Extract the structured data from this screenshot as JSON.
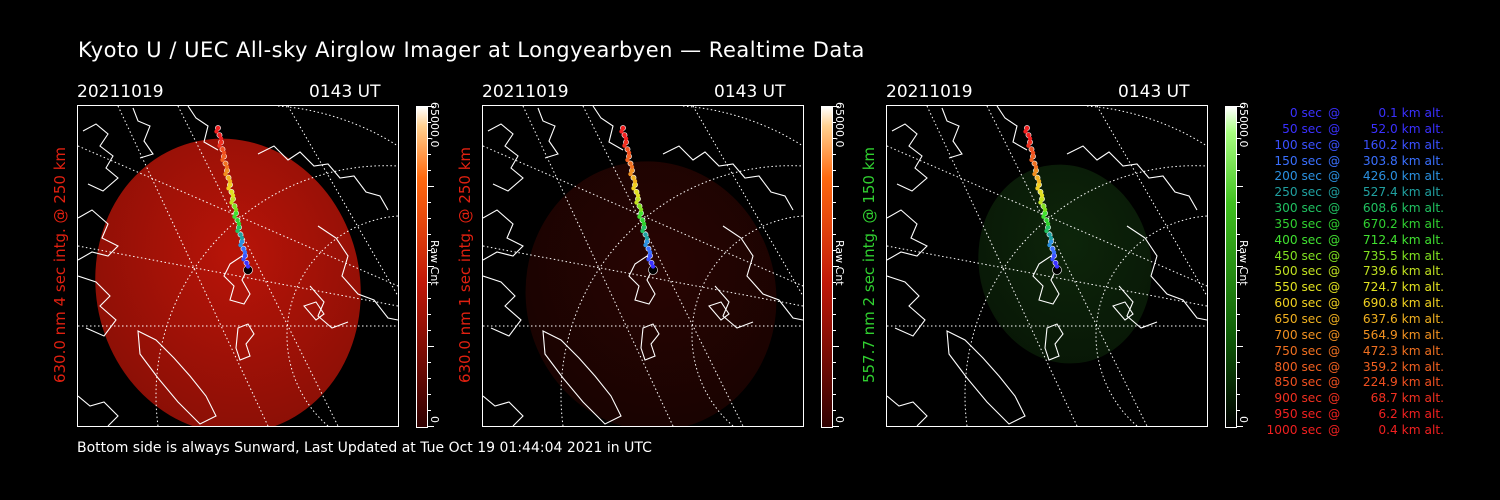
{
  "header": {
    "title": "Kyoto U / UEC All-sky Airglow Imager at Longyearbyen — Realtime Data"
  },
  "footer": {
    "text": "Bottom side is always Sunward, Last Updated at Tue Oct 19 01:44:04 2021 in UTC"
  },
  "panels": [
    {
      "date": "20211019",
      "time": "0143 UT",
      "side_label": "630.0 nm 4 sec intg. @ 250 km",
      "label_color": "#e02010",
      "cbar_max": "65000.0",
      "cbar_zero": "0",
      "cbar_unit": "Raw Cnt",
      "intensity_level": 0.85,
      "glow_color": "#b81408"
    },
    {
      "date": "20211019",
      "time": "0143 UT",
      "side_label": "630.0 nm 1 sec intg. @ 250 km",
      "label_color": "#e02010",
      "cbar_max": "65000.0",
      "cbar_zero": "0",
      "cbar_unit": "Raw Cnt",
      "intensity_level": 0.3,
      "glow_color": "#5a0a04"
    },
    {
      "date": "20211019",
      "time": "0143 UT",
      "side_label": "557.7 nm 2 sec intg. @ 150 km",
      "label_color": "#30d030",
      "cbar_max": "65000.0",
      "cbar_zero": "0",
      "cbar_unit": "Raw Cnt",
      "intensity_level": 0.35,
      "glow_color": "#1a4a14"
    }
  ],
  "legend": [
    {
      "time": "0 sec",
      "alt": "0.1 km alt.",
      "color": "#3a30ff"
    },
    {
      "time": "50 sec",
      "alt": "52.0 km alt.",
      "color": "#3a30ff"
    },
    {
      "time": "100 sec",
      "alt": "160.2 km alt.",
      "color": "#3a50ff"
    },
    {
      "time": "150 sec",
      "alt": "303.8 km alt.",
      "color": "#3a70ff"
    },
    {
      "time": "200 sec",
      "alt": "426.0 km alt.",
      "color": "#2a90e0"
    },
    {
      "time": "250 sec",
      "alt": "527.4 km alt.",
      "color": "#20a0a0"
    },
    {
      "time": "300 sec",
      "alt": "608.6 km alt.",
      "color": "#20c060"
    },
    {
      "time": "350 sec",
      "alt": "670.2 km alt.",
      "color": "#30d030"
    },
    {
      "time": "400 sec",
      "alt": "712.4 km alt.",
      "color": "#40e030"
    },
    {
      "time": "450 sec",
      "alt": "735.5 km alt.",
      "color": "#80e020"
    },
    {
      "time": "500 sec",
      "alt": "739.6 km alt.",
      "color": "#c0e020"
    },
    {
      "time": "550 sec",
      "alt": "724.7 km alt.",
      "color": "#e0e020"
    },
    {
      "time": "600 sec",
      "alt": "690.8 km alt.",
      "color": "#f0d020"
    },
    {
      "time": "650 sec",
      "alt": "637.6 km alt.",
      "color": "#f0b020"
    },
    {
      "time": "700 sec",
      "alt": "564.9 km alt.",
      "color": "#f09020"
    },
    {
      "time": "750 sec",
      "alt": "472.3 km alt.",
      "color": "#f07020"
    },
    {
      "time": "800 sec",
      "alt": "359.2 km alt.",
      "color": "#f06020"
    },
    {
      "time": "850 sec",
      "alt": "224.9 km alt.",
      "color": "#f05020"
    },
    {
      "time": "900 sec",
      "alt": "68.7 km alt.",
      "color": "#f03020"
    },
    {
      "time": "950 sec",
      "alt": "6.2 km alt.",
      "color": "#f02020"
    },
    {
      "time": "1000 sec",
      "alt": "0.4 km alt.",
      "color": "#f02020"
    }
  ],
  "legend_at": "@"
}
